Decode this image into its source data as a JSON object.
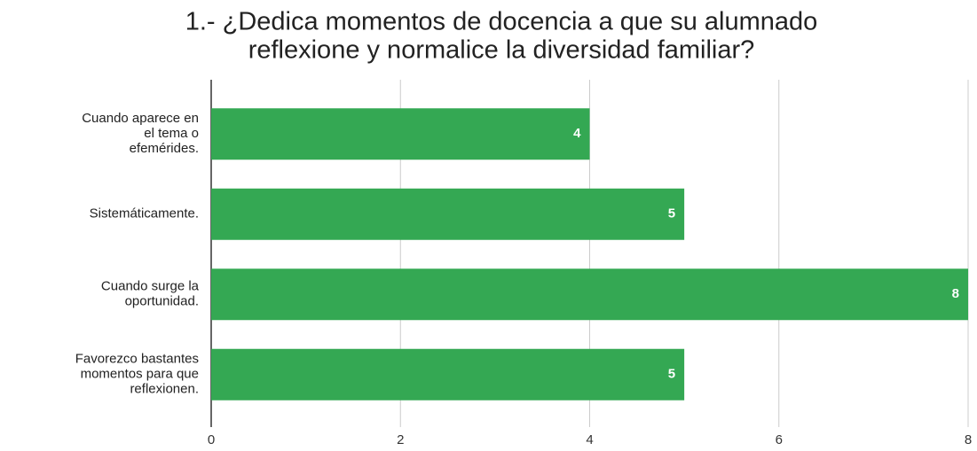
{
  "chart_data": {
    "type": "bar",
    "orientation": "horizontal",
    "title": [
      "1.-  ¿Dedica momentos de docencia a que su alumnado",
      "reflexione y normalice la diversidad familiar?"
    ],
    "categories": [
      [
        "Cuando aparece en",
        "el tema o",
        "efemérides."
      ],
      [
        "Sistemáticamente."
      ],
      [
        "Cuando surge la",
        "oportunidad."
      ],
      [
        "Favorezco bastantes",
        "momentos para que",
        "reflexionen."
      ]
    ],
    "values": [
      4,
      5,
      8,
      5
    ],
    "color": "#34a853",
    "xlim": [
      0,
      8
    ],
    "xticks": [
      0,
      2,
      4,
      6,
      8
    ],
    "grid": true
  }
}
